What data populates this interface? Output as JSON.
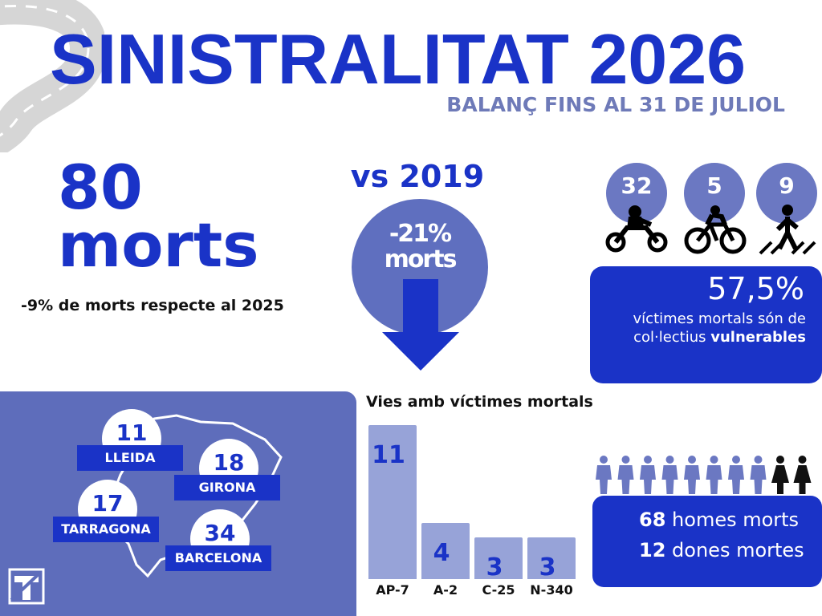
{
  "title": "SINISTRALITAT 2026",
  "subtitle": "BALANÇ FINS AL 31 DE JULIOL",
  "total_deaths": {
    "number": "80",
    "unit": "morts",
    "comparison_2025": "-9% de morts respecte al 2025"
  },
  "vs_2019": {
    "label": "vs 2019",
    "percent": "-21%",
    "unit": "morts"
  },
  "vulnerable": {
    "counts": [
      {
        "value": "32",
        "icon": "motorcycle-icon"
      },
      {
        "value": "5",
        "icon": "bicycle-icon"
      },
      {
        "value": "9",
        "icon": "pedestrian-icon"
      }
    ],
    "percent": "57,5%",
    "text_pre": "víctimes mortals són de col·lectius ",
    "text_bold": "vulnerables"
  },
  "provinces": [
    {
      "name": "LLEIDA",
      "value": "11"
    },
    {
      "name": "GIRONA",
      "value": "18"
    },
    {
      "name": "TARRAGONA",
      "value": "17"
    },
    {
      "name": "BARCELONA",
      "value": "34"
    }
  ],
  "chart_data": {
    "type": "bar",
    "title": "Vies amb víctimes mortals",
    "categories": [
      "AP-7",
      "A-2",
      "C-25",
      "N-340"
    ],
    "values": [
      11,
      4,
      3,
      3
    ],
    "ylim": [
      0,
      11
    ],
    "grid": false,
    "colors": {
      "bar": "#97a3d8",
      "label": "#1a33c7"
    }
  },
  "gender": {
    "men_count": "68",
    "men_label": "homes morts",
    "women_count": "12",
    "women_label": "dones mortes",
    "icons": "person-icon"
  },
  "colors": {
    "primary": "#1a33c7",
    "light": "#5f6fbf",
    "panel": "#5e6dbb",
    "subtitle": "#6e7ab8"
  }
}
